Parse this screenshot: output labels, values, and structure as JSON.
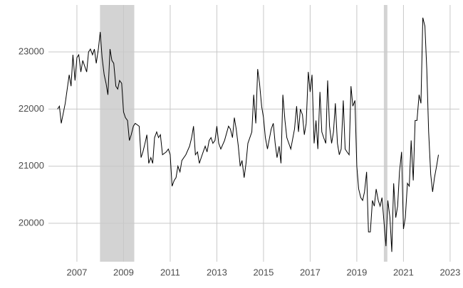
{
  "chart_data": {
    "type": "line",
    "x": [
      2006.17,
      2006.25,
      2006.33,
      2006.5,
      2006.67,
      2006.75,
      2006.83,
      2006.92,
      2007.0,
      2007.08,
      2007.17,
      2007.25,
      2007.42,
      2007.5,
      2007.58,
      2007.67,
      2007.75,
      2007.83,
      2007.92,
      2008.0,
      2008.08,
      2008.17,
      2008.25,
      2008.33,
      2008.42,
      2008.5,
      2008.58,
      2008.67,
      2008.75,
      2008.83,
      2008.92,
      2009.0,
      2009.08,
      2009.17,
      2009.25,
      2009.33,
      2009.42,
      2009.5,
      2009.67,
      2009.75,
      2009.83,
      2009.92,
      2010.0,
      2010.08,
      2010.17,
      2010.25,
      2010.33,
      2010.42,
      2010.5,
      2010.58,
      2010.67,
      2010.83,
      2010.92,
      2011.0,
      2011.08,
      2011.17,
      2011.25,
      2011.33,
      2011.42,
      2011.5,
      2011.67,
      2011.83,
      2011.92,
      2012.0,
      2012.08,
      2012.17,
      2012.25,
      2012.33,
      2012.5,
      2012.58,
      2012.67,
      2012.75,
      2012.83,
      2012.92,
      2013.0,
      2013.08,
      2013.17,
      2013.33,
      2013.5,
      2013.58,
      2013.67,
      2013.75,
      2013.83,
      2013.92,
      2014.0,
      2014.08,
      2014.17,
      2014.25,
      2014.33,
      2014.5,
      2014.58,
      2014.67,
      2014.75,
      2014.83,
      2014.92,
      2015.0,
      2015.08,
      2015.17,
      2015.33,
      2015.42,
      2015.5,
      2015.58,
      2015.67,
      2015.75,
      2015.83,
      2015.92,
      2016.0,
      2016.17,
      2016.33,
      2016.42,
      2016.5,
      2016.58,
      2016.67,
      2016.75,
      2016.83,
      2016.92,
      2017.0,
      2017.08,
      2017.17,
      2017.25,
      2017.33,
      2017.42,
      2017.5,
      2017.58,
      2017.67,
      2017.75,
      2017.83,
      2017.92,
      2018.0,
      2018.08,
      2018.17,
      2018.25,
      2018.33,
      2018.42,
      2018.5,
      2018.58,
      2018.67,
      2018.75,
      2018.83,
      2018.92,
      2019.0,
      2019.08,
      2019.17,
      2019.25,
      2019.33,
      2019.42,
      2019.5,
      2019.58,
      2019.67,
      2019.75,
      2019.83,
      2019.92,
      2020.0,
      2020.08,
      2020.17,
      2020.25,
      2020.33,
      2020.42,
      2020.5,
      2020.58,
      2020.67,
      2020.75,
      2020.83,
      2020.92,
      2021.0,
      2021.08,
      2021.17,
      2021.25,
      2021.33,
      2021.42,
      2021.5,
      2021.58,
      2021.67,
      2021.75,
      2021.83,
      2021.92,
      2022.0,
      2022.08,
      2022.17,
      2022.25,
      2022.33,
      2022.42,
      2022.5
    ],
    "series": [
      {
        "color": "#000000",
        "values": [
          22000,
          22050,
          21750,
          22100,
          22600,
          22400,
          22950,
          22500,
          22900,
          22950,
          22650,
          22850,
          22650,
          23000,
          23050,
          22950,
          23050,
          22800,
          23050,
          23350,
          22900,
          22600,
          22450,
          22250,
          23050,
          22850,
          22800,
          22400,
          22350,
          22500,
          22450,
          21950,
          21850,
          21800,
          21450,
          21550,
          21700,
          21750,
          21700,
          21150,
          21250,
          21400,
          21550,
          21050,
          21150,
          21050,
          21500,
          21600,
          21500,
          21550,
          21200,
          21250,
          21300,
          21200,
          20650,
          20750,
          20800,
          21000,
          20900,
          21100,
          21200,
          21350,
          21500,
          21700,
          21200,
          21250,
          21050,
          21150,
          21350,
          21250,
          21450,
          21500,
          21400,
          21450,
          21700,
          21400,
          21300,
          21450,
          21700,
          21650,
          21500,
          21850,
          21650,
          21350,
          21000,
          21100,
          20800,
          21050,
          21400,
          21600,
          22250,
          21750,
          22700,
          22450,
          22050,
          21850,
          21500,
          21300,
          21650,
          21750,
          21400,
          21150,
          21350,
          21050,
          22250,
          21800,
          21500,
          21300,
          21650,
          22050,
          21600,
          22000,
          21900,
          21550,
          21750,
          22650,
          22300,
          22600,
          21400,
          21800,
          21300,
          22300,
          21600,
          21500,
          21400,
          22500,
          21700,
          21400,
          21600,
          22100,
          21400,
          21200,
          21300,
          22150,
          21300,
          21250,
          21200,
          22400,
          22050,
          22150,
          21000,
          20600,
          20450,
          20400,
          20550,
          20900,
          19850,
          19850,
          20400,
          20300,
          20600,
          20400,
          20300,
          20450,
          20000,
          19600,
          20400,
          20100,
          19500,
          20700,
          20100,
          20300,
          20900,
          21250,
          19900,
          20100,
          20700,
          20650,
          21450,
          20750,
          21800,
          21800,
          22250,
          22100,
          23600,
          23450,
          22700,
          21600,
          20850,
          20550,
          20800,
          21000,
          21200
        ]
      }
    ],
    "shaded": [
      [
        2007.99,
        2009.46
      ],
      [
        2020.16,
        2020.31
      ]
    ],
    "shade_color": "#d3d3d3",
    "xlim": [
      2005.78,
      2023.4
    ],
    "xticks": [
      2007,
      2009,
      2011,
      2013,
      2015,
      2017,
      2019,
      2021,
      2023
    ],
    "ylim": [
      19328,
      23822
    ],
    "yticks": [
      20000,
      21000,
      22000,
      23000
    ],
    "grid": true
  }
}
